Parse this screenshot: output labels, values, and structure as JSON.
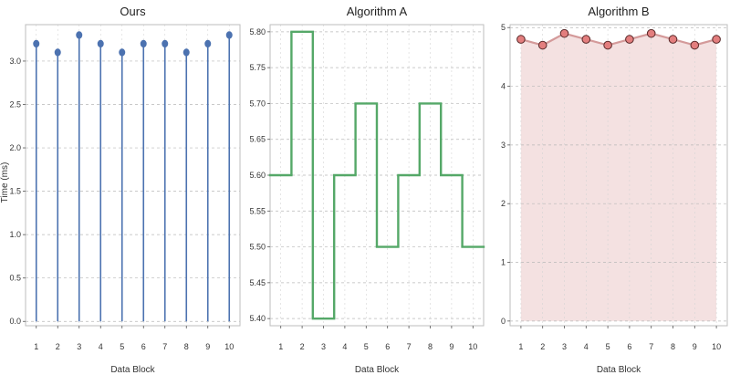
{
  "figure": {
    "shared_ylabel": "Time (ms)"
  },
  "chart_data": [
    {
      "type": "stem",
      "title": "Ours",
      "xlabel": "Data Block",
      "ylabel": "Time (ms)",
      "x": [
        1,
        2,
        3,
        4,
        5,
        6,
        7,
        8,
        9,
        10
      ],
      "values": [
        3.2,
        3.1,
        3.3,
        3.2,
        3.1,
        3.2,
        3.2,
        3.1,
        3.2,
        3.3
      ],
      "xlim": [
        0.5,
        10.5
      ],
      "ylim": [
        -0.05,
        3.42
      ],
      "yticks": [
        0.0,
        0.5,
        1.0,
        1.5,
        2.0,
        2.5,
        3.0
      ],
      "ytick_labels": [
        "0.0",
        "0.5",
        "1.0",
        "1.5",
        "2.0",
        "2.5",
        "3.0"
      ],
      "grid": true,
      "color": "#4c72b0"
    },
    {
      "type": "step",
      "title": "Algorithm A",
      "xlabel": "Data Block",
      "x": [
        1,
        2,
        3,
        4,
        5,
        6,
        7,
        8,
        9,
        10
      ],
      "values": [
        5.6,
        5.8,
        5.4,
        5.6,
        5.7,
        5.5,
        5.6,
        5.7,
        5.6,
        5.5
      ],
      "xlim": [
        0.5,
        10.5
      ],
      "ylim": [
        5.39,
        5.81
      ],
      "yticks": [
        5.4,
        5.45,
        5.5,
        5.55,
        5.6,
        5.65,
        5.7,
        5.75,
        5.8
      ],
      "ytick_labels": [
        "5.40",
        "5.45",
        "5.50",
        "5.55",
        "5.60",
        "5.65",
        "5.70",
        "5.75",
        "5.80"
      ],
      "grid": true,
      "color": "#55a868"
    },
    {
      "type": "area",
      "title": "Algorithm B",
      "xlabel": "Data Block",
      "x": [
        1,
        2,
        3,
        4,
        5,
        6,
        7,
        8,
        9,
        10
      ],
      "values": [
        4.8,
        4.7,
        4.9,
        4.8,
        4.7,
        4.8,
        4.9,
        4.8,
        4.7,
        4.8
      ],
      "xlim": [
        0.5,
        10.5
      ],
      "ylim": [
        -0.08,
        5.05
      ],
      "yticks": [
        0,
        1,
        2,
        3,
        4,
        5
      ],
      "ytick_labels": [
        "0",
        "1",
        "2",
        "3",
        "4",
        "5"
      ],
      "grid": true,
      "color": "#c44e52",
      "fill_color": "#f4e1e1"
    }
  ]
}
